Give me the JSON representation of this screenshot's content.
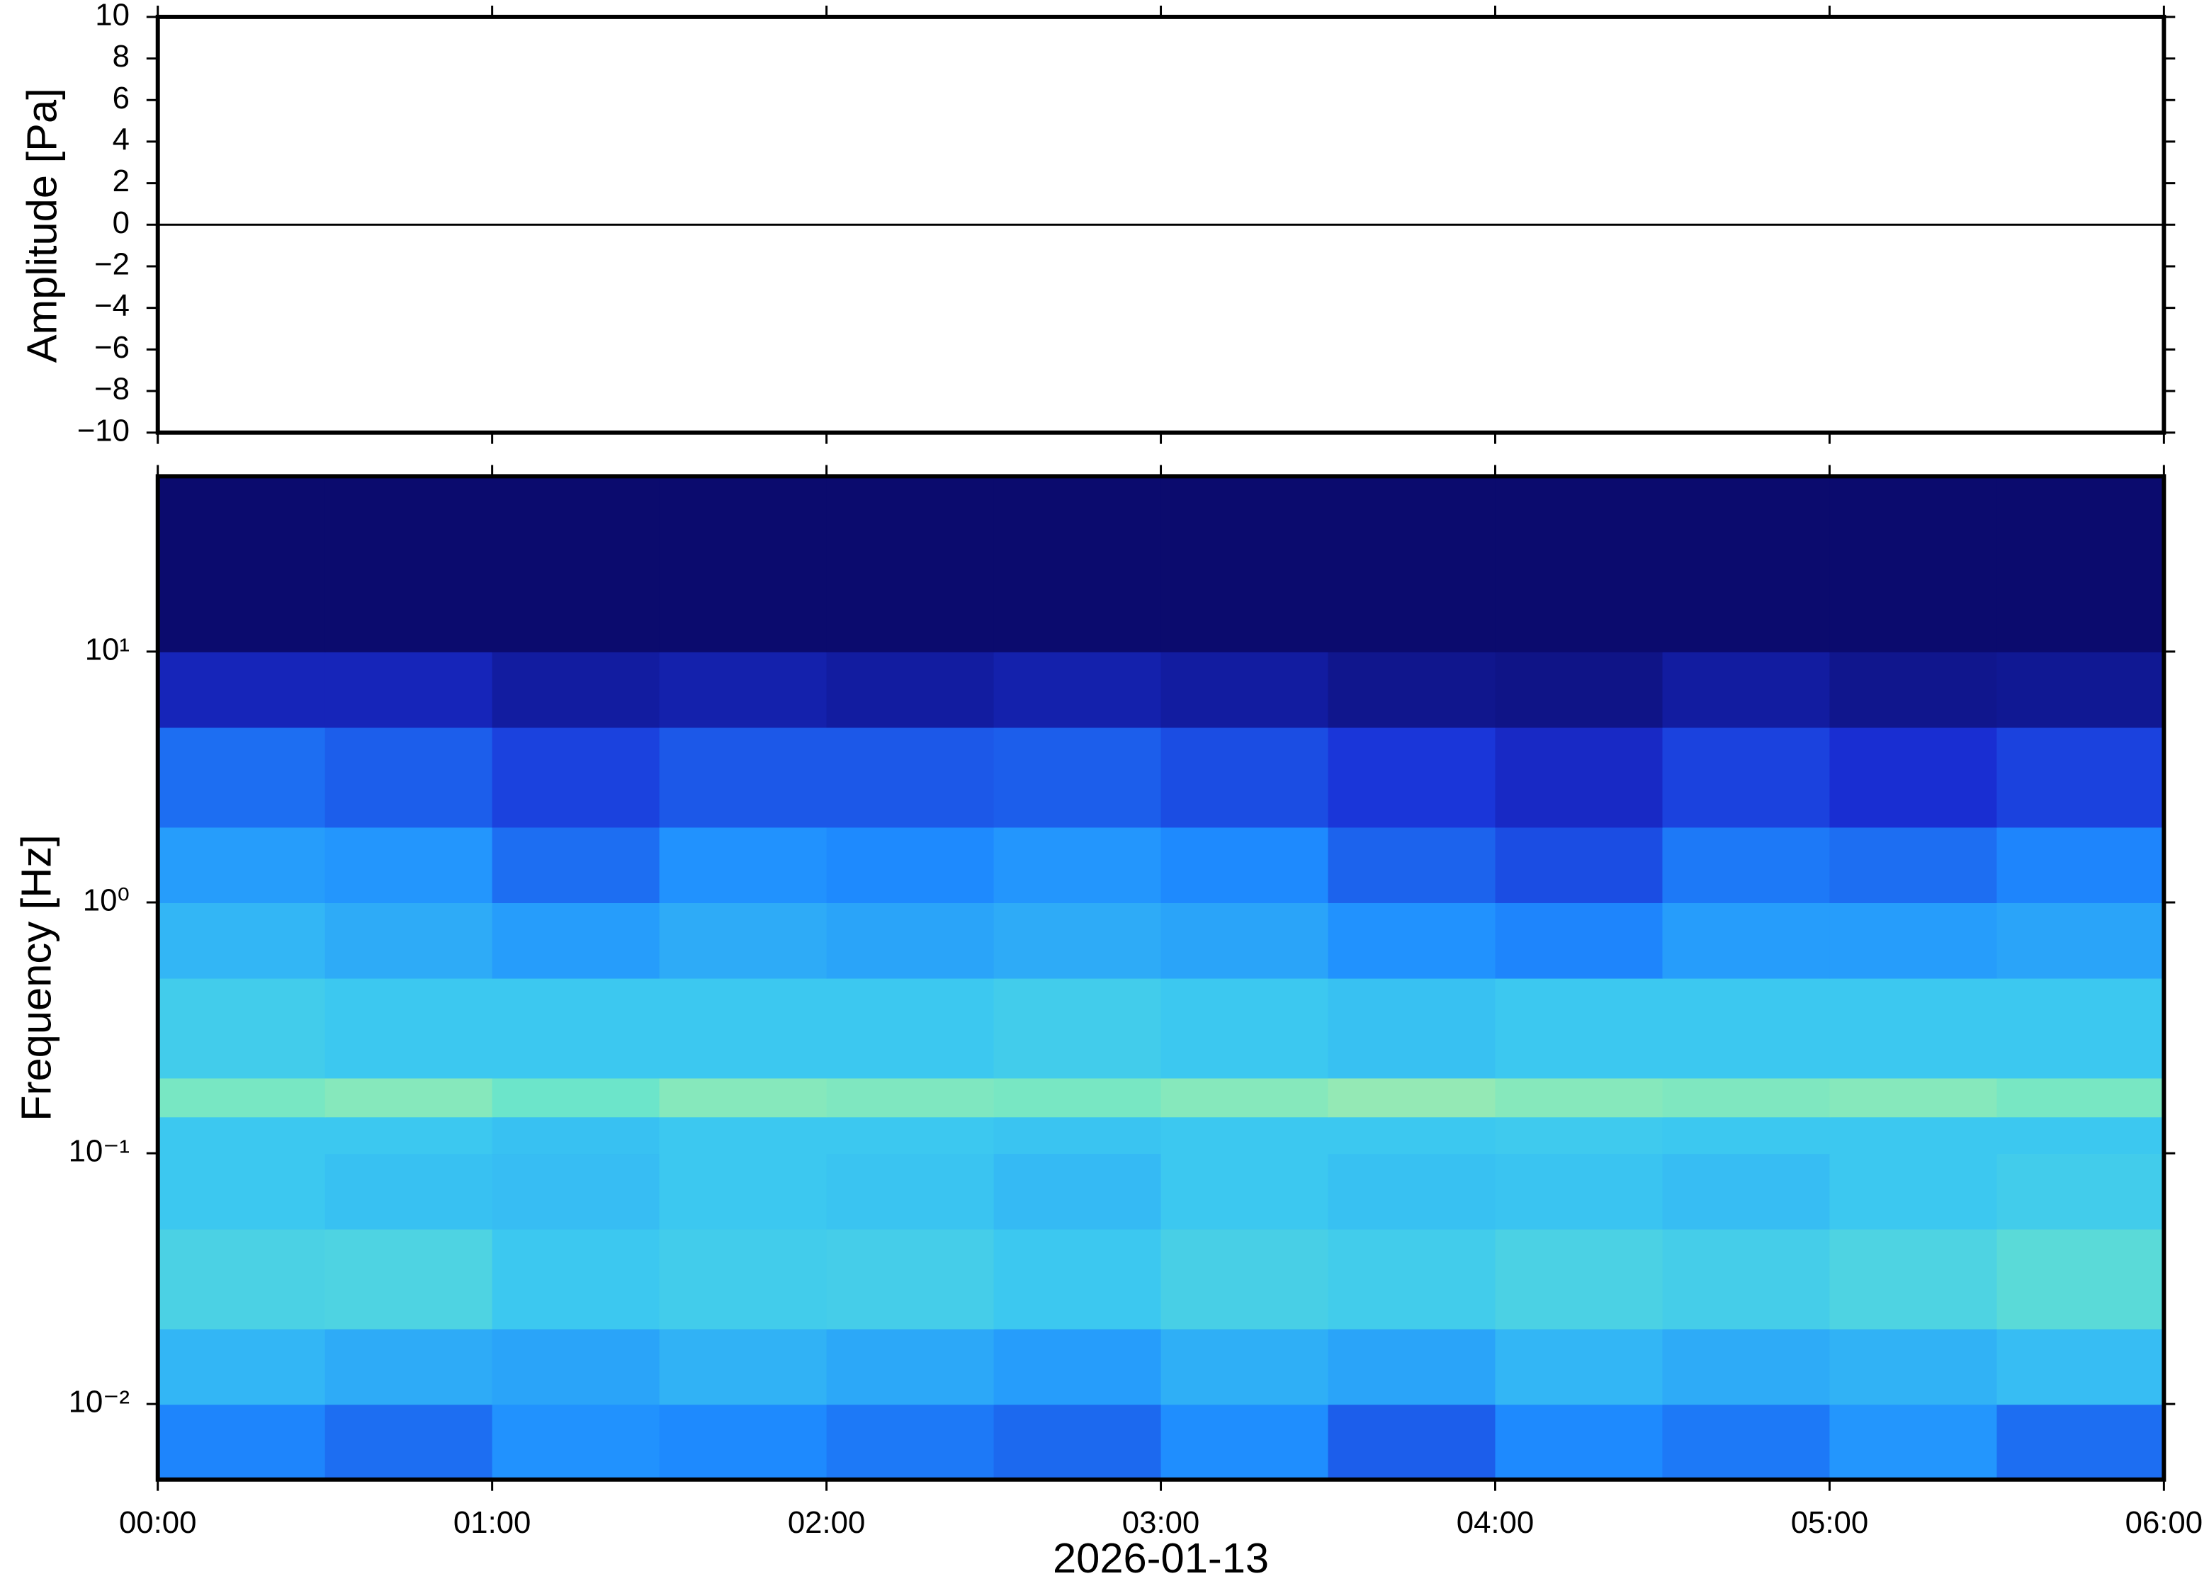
{
  "chart_data": [
    {
      "type": "line",
      "ylabel": "Amplitude [Pa]",
      "x": [
        0,
        6
      ],
      "series": [
        {
          "color": "#000000",
          "values": [
            0,
            0
          ]
        }
      ],
      "xlim": [
        0,
        6
      ],
      "ylim": [
        -10,
        10
      ],
      "yticks": [
        {
          "value": -10,
          "label": "−10"
        },
        {
          "value": -8,
          "label": "−8"
        },
        {
          "value": -6,
          "label": "−6"
        },
        {
          "value": -4,
          "label": "−4"
        },
        {
          "value": -2,
          "label": "−2"
        },
        0,
        2,
        4,
        6,
        8,
        10
      ]
    },
    {
      "type": "spectrogram",
      "ylabel": "Frequency [Hz]",
      "xlabel": "2026-01-13",
      "log_y": true,
      "xlim": [
        0,
        6
      ],
      "ylim": [
        0.005,
        50
      ],
      "xticks": [
        {
          "value": 0,
          "label": "00:00"
        },
        {
          "value": 1,
          "label": "01:00"
        },
        {
          "value": 2,
          "label": "02:00"
        },
        {
          "value": 3,
          "label": "03:00"
        },
        {
          "value": 4,
          "label": "04:00"
        },
        {
          "value": 5,
          "label": "05:00"
        },
        {
          "value": 6,
          "label": "06:00"
        }
      ],
      "yticks": [
        {
          "value": 0.01,
          "label": "10⁻²"
        },
        {
          "value": 0.1,
          "label": "10⁻¹"
        },
        {
          "value": 1,
          "label": "10⁰"
        },
        {
          "value": 10,
          "label": "10¹"
        }
      ],
      "colormap": [
        "#0b0b6e",
        "#1a2fd6",
        "#1e8cff",
        "#3cc8f0",
        "#6ee6c8",
        "#e6ee8c",
        "#f5c864"
      ],
      "x_edges": [
        0,
        0.5,
        1,
        1.5,
        2,
        2.5,
        3,
        3.5,
        4,
        4.5,
        5,
        5.5,
        6
      ],
      "y_edges": [
        0.005,
        0.01,
        0.02,
        0.05,
        0.1,
        0.14,
        0.2,
        0.5,
        1,
        2,
        5,
        10,
        50
      ],
      "z": [
        [
          0.32,
          0.28,
          0.35,
          0.33,
          0.3,
          0.27,
          0.34,
          0.25,
          0.33,
          0.3,
          0.36,
          0.28
        ],
        [
          0.45,
          0.42,
          0.4,
          0.44,
          0.41,
          0.38,
          0.43,
          0.4,
          0.45,
          0.42,
          0.44,
          0.47
        ],
        [
          0.55,
          0.56,
          0.5,
          0.52,
          0.53,
          0.5,
          0.54,
          0.52,
          0.55,
          0.53,
          0.56,
          0.6
        ],
        [
          0.5,
          0.48,
          0.47,
          0.5,
          0.49,
          0.46,
          0.5,
          0.48,
          0.49,
          0.47,
          0.5,
          0.52
        ],
        [
          0.5,
          0.5,
          0.48,
          0.5,
          0.5,
          0.49,
          0.5,
          0.5,
          0.51,
          0.5,
          0.5,
          0.5
        ],
        [
          0.68,
          0.7,
          0.66,
          0.7,
          0.69,
          0.68,
          0.7,
          0.72,
          0.7,
          0.69,
          0.7,
          0.68
        ],
        [
          0.52,
          0.5,
          0.5,
          0.5,
          0.5,
          0.52,
          0.5,
          0.48,
          0.5,
          0.5,
          0.5,
          0.5
        ],
        [
          0.45,
          0.42,
          0.38,
          0.42,
          0.4,
          0.42,
          0.4,
          0.35,
          0.32,
          0.38,
          0.38,
          0.4
        ],
        [
          0.38,
          0.36,
          0.28,
          0.35,
          0.33,
          0.36,
          0.33,
          0.26,
          0.22,
          0.3,
          0.28,
          0.32
        ],
        [
          0.28,
          0.25,
          0.2,
          0.24,
          0.24,
          0.25,
          0.22,
          0.18,
          0.14,
          0.2,
          0.16,
          0.2
        ],
        [
          0.12,
          0.12,
          0.08,
          0.1,
          0.08,
          0.1,
          0.08,
          0.05,
          0.04,
          0.08,
          0.05,
          0.06
        ],
        [
          0,
          0,
          0,
          0,
          0,
          0,
          0,
          0,
          0,
          0,
          0,
          0
        ]
      ]
    }
  ]
}
